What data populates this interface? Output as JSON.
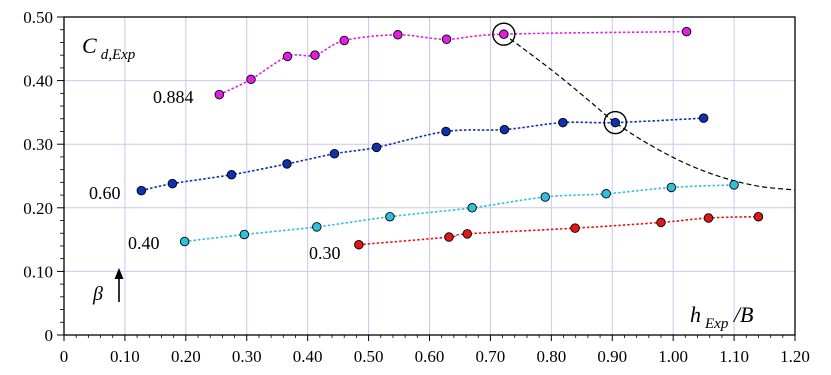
{
  "chart_data": {
    "type": "scatter",
    "title": "",
    "ylabel": {
      "main": "C",
      "sub": "d,Exp"
    },
    "xlabel": {
      "main": "h",
      "sub": "Exp",
      "suffix": " /B"
    },
    "beta_label": "β",
    "xlim": [
      0,
      1.2
    ],
    "ylim": [
      0,
      0.5
    ],
    "grid": true,
    "grid_color": "#c8c8f0",
    "x_ticks": [
      "0",
      "0.10",
      "0.20",
      "0.30",
      "0.40",
      "0.50",
      "0.60",
      "0.70",
      "0.80",
      "0.90",
      "1.00",
      "1.10",
      "1.20"
    ],
    "y_ticks": [
      "0",
      "0.10",
      "0.20",
      "0.30",
      "0.40",
      "0.50"
    ],
    "series": [
      {
        "name": "0.884",
        "color": "#e020e0",
        "x": [
          0.255,
          0.307,
          0.367,
          0.412,
          0.46,
          0.548,
          0.628,
          0.722,
          1.022
        ],
        "y": [
          0.378,
          0.402,
          0.438,
          0.44,
          0.463,
          0.472,
          0.465,
          0.473,
          0.477
        ]
      },
      {
        "name": "0.60",
        "color": "#1030b0",
        "x": [
          0.127,
          0.178,
          0.275,
          0.366,
          0.444,
          0.513,
          0.627,
          0.723,
          0.819,
          0.905,
          1.05
        ],
        "y": [
          0.227,
          0.238,
          0.252,
          0.269,
          0.285,
          0.295,
          0.32,
          0.323,
          0.334,
          0.334,
          0.341
        ]
      },
      {
        "name": "0.40",
        "color": "#30c0dc",
        "x": [
          0.198,
          0.296,
          0.415,
          0.535,
          0.67,
          0.79,
          0.89,
          0.997,
          1.1
        ],
        "y": [
          0.147,
          0.158,
          0.17,
          0.186,
          0.2,
          0.217,
          0.222,
          0.232,
          0.236
        ]
      },
      {
        "name": "0.30",
        "color": "#e01818",
        "x": [
          0.484,
          0.632,
          0.662,
          0.839,
          0.98,
          1.058,
          1.14
        ],
        "y": [
          0.142,
          0.154,
          0.159,
          0.168,
          0.177,
          0.184,
          0.186
        ]
      }
    ],
    "envelope": {
      "style": "dashed",
      "x": [
        0.722,
        0.8,
        0.86,
        0.905,
        0.96,
        1.02,
        1.08,
        1.14,
        1.2
      ],
      "y": [
        0.473,
        0.417,
        0.37,
        0.334,
        0.3,
        0.27,
        0.248,
        0.234,
        0.228
      ]
    },
    "highlighted_points": [
      {
        "x": 0.722,
        "y": 0.473
      },
      {
        "x": 0.905,
        "y": 0.334
      }
    ]
  }
}
